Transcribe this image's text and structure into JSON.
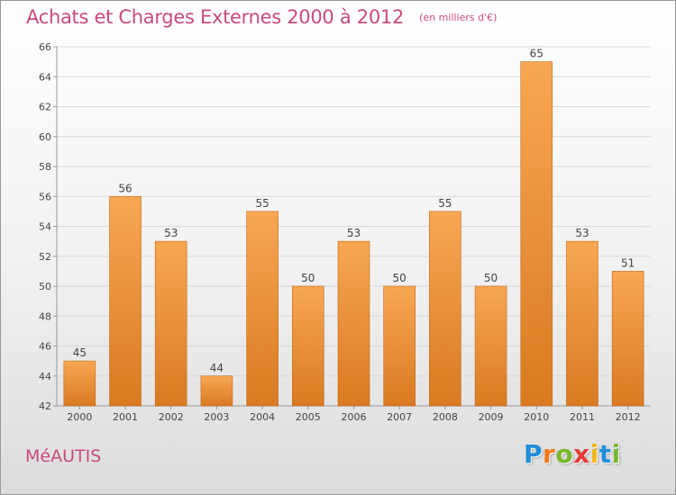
{
  "header": {
    "title": "Achats et Charges Externes 2000 à 2012",
    "subtitle": "(en milliers d'€)"
  },
  "footer": {
    "commune": "MéAUTIS",
    "logo_letters": [
      {
        "ch": "P",
        "color": "#1f8ed8"
      },
      {
        "ch": "r",
        "color": "#f07a1a"
      },
      {
        "ch": "o",
        "color": "#7ab82c"
      },
      {
        "ch": "x",
        "color": "#e83a3a"
      },
      {
        "ch": "i",
        "color": "#f0b81a"
      },
      {
        "ch": "t",
        "color": "#1f8ed8"
      },
      {
        "ch": "i",
        "color": "#7ab82c"
      }
    ]
  },
  "colors": {
    "bar_top": "#f8a752",
    "bar_bottom": "#d97a22",
    "bar_edge": "#c46a18",
    "grid": "#d9d9d9",
    "axis": "#999999",
    "text": "#444444"
  },
  "chart_data": {
    "type": "bar",
    "title": "Achats et Charges Externes 2000 à 2012",
    "subtitle": "(en milliers d'€)",
    "categories": [
      "2000",
      "2001",
      "2002",
      "2003",
      "2004",
      "2005",
      "2006",
      "2007",
      "2008",
      "2009",
      "2010",
      "2011",
      "2012"
    ],
    "values": [
      45,
      56,
      53,
      44,
      55,
      50,
      53,
      50,
      55,
      50,
      65,
      53,
      51
    ],
    "ylim": [
      42,
      66
    ],
    "yticks": [
      42,
      44,
      46,
      48,
      50,
      52,
      54,
      56,
      58,
      60,
      62,
      64,
      66
    ],
    "grid": true,
    "legend": "none"
  }
}
